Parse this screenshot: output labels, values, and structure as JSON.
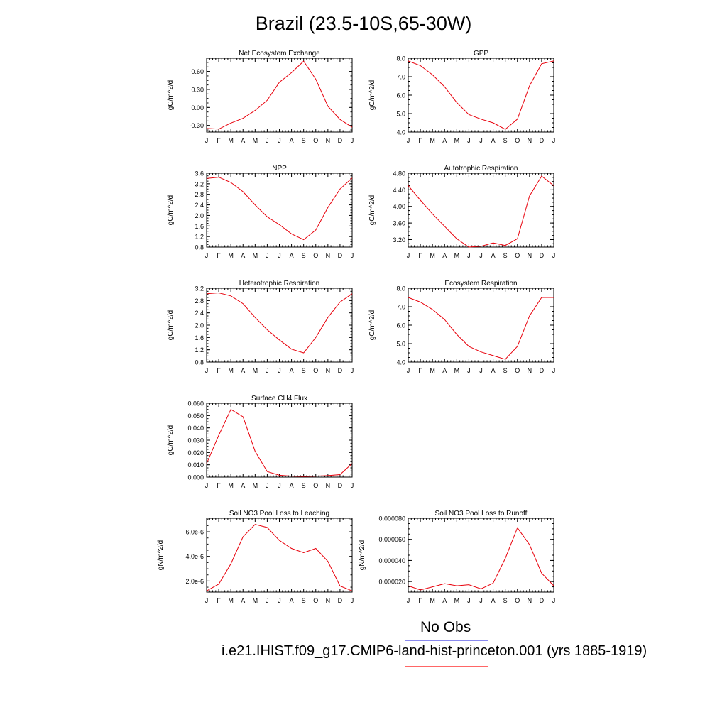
{
  "title": "Brazil (23.5-10S,65-30W)",
  "legend": {
    "obs_label": "No Obs",
    "obs_color": "#8888ee",
    "case_label": "i.e21.IHIST.f09_g17.CMIP6-land-hist-princeton.001 (yrs 1885-1919)",
    "case_color": "#ff6666"
  },
  "line_color": "#e8000b",
  "chart_data": [
    {
      "type": "line",
      "title": "Net Ecosystem Exchange",
      "ylabel": "gC/m^2/d",
      "x": [
        "J",
        "F",
        "M",
        "A",
        "M",
        "J",
        "J",
        "A",
        "S",
        "O",
        "N",
        "D",
        "J"
      ],
      "ylim": [
        -0.41,
        0.82
      ],
      "yticks": [
        -0.3,
        0.0,
        0.3,
        0.6
      ],
      "ytick_labels": [
        "-0.30",
        "0.00",
        "0.30",
        "0.60"
      ],
      "series": [
        {
          "values": [
            -0.35,
            -0.36,
            -0.26,
            -0.18,
            -0.05,
            0.12,
            0.42,
            0.58,
            0.77,
            0.47,
            0.02,
            -0.2,
            -0.33
          ]
        }
      ]
    },
    {
      "type": "line",
      "title": "GPP",
      "ylabel": "gC/m^2/d",
      "x": [
        "J",
        "F",
        "M",
        "A",
        "M",
        "J",
        "J",
        "A",
        "S",
        "O",
        "N",
        "D",
        "J"
      ],
      "ylim": [
        4.0,
        8.0
      ],
      "yticks": [
        4.0,
        5.0,
        6.0,
        7.0,
        8.0
      ],
      "ytick_labels": [
        "4.0",
        "5.0",
        "6.0",
        "7.0",
        "8.0"
      ],
      "series": [
        {
          "values": [
            7.85,
            7.6,
            7.1,
            6.45,
            5.6,
            4.95,
            4.7,
            4.5,
            4.15,
            4.7,
            6.5,
            7.7,
            7.85
          ]
        }
      ]
    },
    {
      "type": "line",
      "title": "NPP",
      "ylabel": "gC/m^2/d",
      "x": [
        "J",
        "F",
        "M",
        "A",
        "M",
        "J",
        "J",
        "A",
        "S",
        "O",
        "N",
        "D",
        "J"
      ],
      "ylim": [
        0.8,
        3.6
      ],
      "yticks": [
        0.8,
        1.2,
        1.6,
        2.0,
        2.4,
        2.8,
        3.2,
        3.6
      ],
      "ytick_labels": [
        "0.8",
        "1.2",
        "1.6",
        "2.0",
        "2.4",
        "2.8",
        "3.2",
        "3.6"
      ],
      "series": [
        {
          "values": [
            3.4,
            3.45,
            3.25,
            2.9,
            2.4,
            1.95,
            1.65,
            1.3,
            1.08,
            1.45,
            2.3,
            3.0,
            3.42
          ]
        }
      ]
    },
    {
      "type": "line",
      "title": "Autotrophic Respiration",
      "ylabel": "gC/m^2/d",
      "x": [
        "J",
        "F",
        "M",
        "A",
        "M",
        "J",
        "J",
        "A",
        "S",
        "O",
        "N",
        "D",
        "J"
      ],
      "ylim": [
        3.02,
        4.8
      ],
      "yticks": [
        3.2,
        3.6,
        4.0,
        4.4,
        4.8
      ],
      "ytick_labels": [
        "3.20",
        "3.60",
        "4.00",
        "4.40",
        "4.80"
      ],
      "series": [
        {
          "values": [
            4.5,
            4.15,
            3.82,
            3.52,
            3.22,
            3.02,
            3.04,
            3.12,
            3.06,
            3.22,
            4.25,
            4.73,
            4.5
          ]
        }
      ]
    },
    {
      "type": "line",
      "title": "Heterotrophic Respiration",
      "ylabel": "gC/m^2/d",
      "x": [
        "J",
        "F",
        "M",
        "A",
        "M",
        "J",
        "J",
        "A",
        "S",
        "O",
        "N",
        "D",
        "J"
      ],
      "ylim": [
        0.8,
        3.2
      ],
      "yticks": [
        0.8,
        1.2,
        1.6,
        2.0,
        2.4,
        2.8,
        3.2
      ],
      "ytick_labels": [
        "0.8",
        "1.2",
        "1.6",
        "2.0",
        "2.4",
        "2.8",
        "3.2"
      ],
      "series": [
        {
          "values": [
            3.02,
            3.05,
            2.95,
            2.7,
            2.25,
            1.85,
            1.52,
            1.22,
            1.1,
            1.6,
            2.25,
            2.75,
            3.02
          ]
        }
      ]
    },
    {
      "type": "line",
      "title": "Ecosystem Respiration",
      "ylabel": "gC/m^2/d",
      "x": [
        "J",
        "F",
        "M",
        "A",
        "M",
        "J",
        "J",
        "A",
        "S",
        "O",
        "N",
        "D",
        "J"
      ],
      "ylim": [
        4.0,
        8.0
      ],
      "yticks": [
        4.0,
        5.0,
        6.0,
        7.0,
        8.0
      ],
      "ytick_labels": [
        "4.0",
        "5.0",
        "6.0",
        "7.0",
        "8.0"
      ],
      "series": [
        {
          "values": [
            7.5,
            7.25,
            6.85,
            6.3,
            5.5,
            4.85,
            4.55,
            4.35,
            4.15,
            4.85,
            6.5,
            7.5,
            7.5
          ]
        }
      ]
    },
    {
      "type": "line",
      "title": "Surface CH4 Flux",
      "ylabel": "gC/m^2/d",
      "x": [
        "J",
        "F",
        "M",
        "A",
        "M",
        "J",
        "J",
        "A",
        "S",
        "O",
        "N",
        "D",
        "J"
      ],
      "ylim": [
        0.0,
        0.06
      ],
      "yticks": [
        0.0,
        0.01,
        0.02,
        0.03,
        0.04,
        0.05,
        0.06
      ],
      "ytick_labels": [
        "0.000",
        "0.010",
        "0.020",
        "0.030",
        "0.040",
        "0.050",
        "0.060"
      ],
      "series": [
        {
          "values": [
            0.011,
            0.034,
            0.055,
            0.049,
            0.021,
            0.0045,
            0.0015,
            0.0008,
            0.0005,
            0.0008,
            0.0012,
            0.002,
            0.011
          ]
        }
      ]
    },
    {
      "type": "line",
      "title": "Soil NO3 Pool Loss to Leaching",
      "ylabel": "gN/m^2/d",
      "x": [
        "J",
        "F",
        "M",
        "A",
        "M",
        "J",
        "J",
        "A",
        "S",
        "O",
        "N",
        "D",
        "J"
      ],
      "ylim": [
        1.1e-06,
        7.1e-06
      ],
      "yticks": [
        2e-06,
        4e-06,
        6e-06
      ],
      "ytick_labels": [
        "2.0e-6",
        "4.0e-6",
        "6.0e-6"
      ],
      "series": [
        {
          "values": [
            1.2e-06,
            1.75e-06,
            3.4e-06,
            5.6e-06,
            6.6e-06,
            6.35e-06,
            5.3e-06,
            4.65e-06,
            4.3e-06,
            4.65e-06,
            3.6e-06,
            1.6e-06,
            1.2e-06
          ]
        }
      ]
    },
    {
      "type": "line",
      "title": "Soil NO3 Pool Loss to Runoff",
      "ylabel": "gN/m^2/d",
      "x": [
        "J",
        "F",
        "M",
        "A",
        "M",
        "J",
        "J",
        "A",
        "S",
        "O",
        "N",
        "D",
        "J"
      ],
      "ylim": [
        1e-05,
        8e-05
      ],
      "yticks": [
        2e-05,
        4e-05,
        6e-05,
        8e-05
      ],
      "ytick_labels": [
        "0.000020",
        "0.000040",
        "0.000060",
        "0.000080"
      ],
      "series": [
        {
          "values": [
            1.6e-05,
            1.2e-05,
            1.5e-05,
            1.8e-05,
            1.6e-05,
            1.7e-05,
            1.3e-05,
            1.85e-05,
            4.2e-05,
            7.1e-05,
            5.5e-05,
            2.8e-05,
            1.6e-05
          ]
        }
      ]
    }
  ]
}
